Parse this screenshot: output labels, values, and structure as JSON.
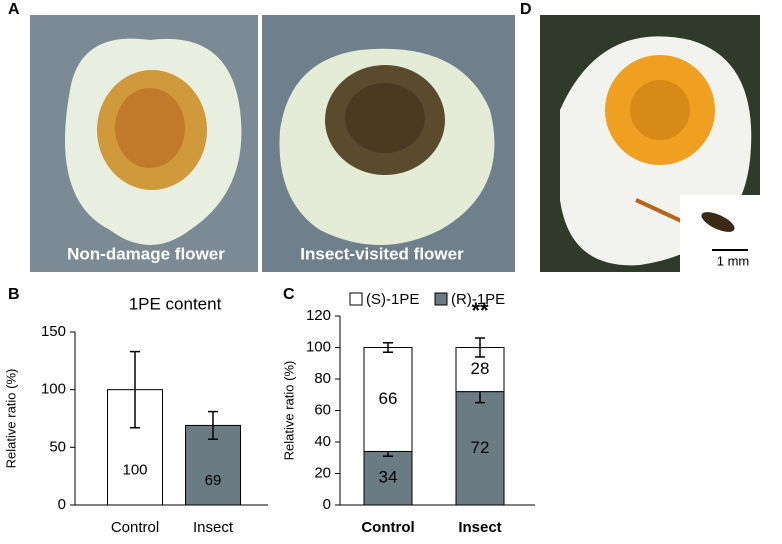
{
  "figure": {
    "panel_labels": [
      "A",
      "B",
      "C",
      "D"
    ],
    "photo_captions": [
      "Non-damage flower",
      "Insect-visited flower"
    ],
    "scale_bar": "1 mm"
  },
  "chart_data": [
    {
      "type": "bar",
      "title": "1PE content",
      "y_label": "Relative ratio (%)",
      "categories": [
        "Control",
        "Insect"
      ],
      "values": [
        100,
        69
      ],
      "errors": [
        33,
        12
      ],
      "colors": [
        "#ffffff",
        "#6b7b83"
      ],
      "ylim": [
        0,
        150
      ],
      "yticks": [
        0,
        50,
        100,
        150
      ]
    },
    {
      "type": "stacked_bar",
      "y_label": "Relative ratio (%)",
      "categories": [
        "Control",
        "Insect"
      ],
      "series": [
        {
          "name": "(R)-1PE",
          "color": "#6b7b83",
          "values": [
            34,
            72
          ],
          "errors": [
            3,
            7
          ]
        },
        {
          "name": "(S)-1PE",
          "color": "#ffffff",
          "values": [
            66,
            28
          ],
          "errors": [
            3,
            6
          ]
        }
      ],
      "annotations": [
        null,
        "**"
      ],
      "ylim": [
        0,
        120
      ],
      "yticks": [
        0,
        20,
        40,
        60,
        80,
        100,
        120
      ]
    }
  ]
}
